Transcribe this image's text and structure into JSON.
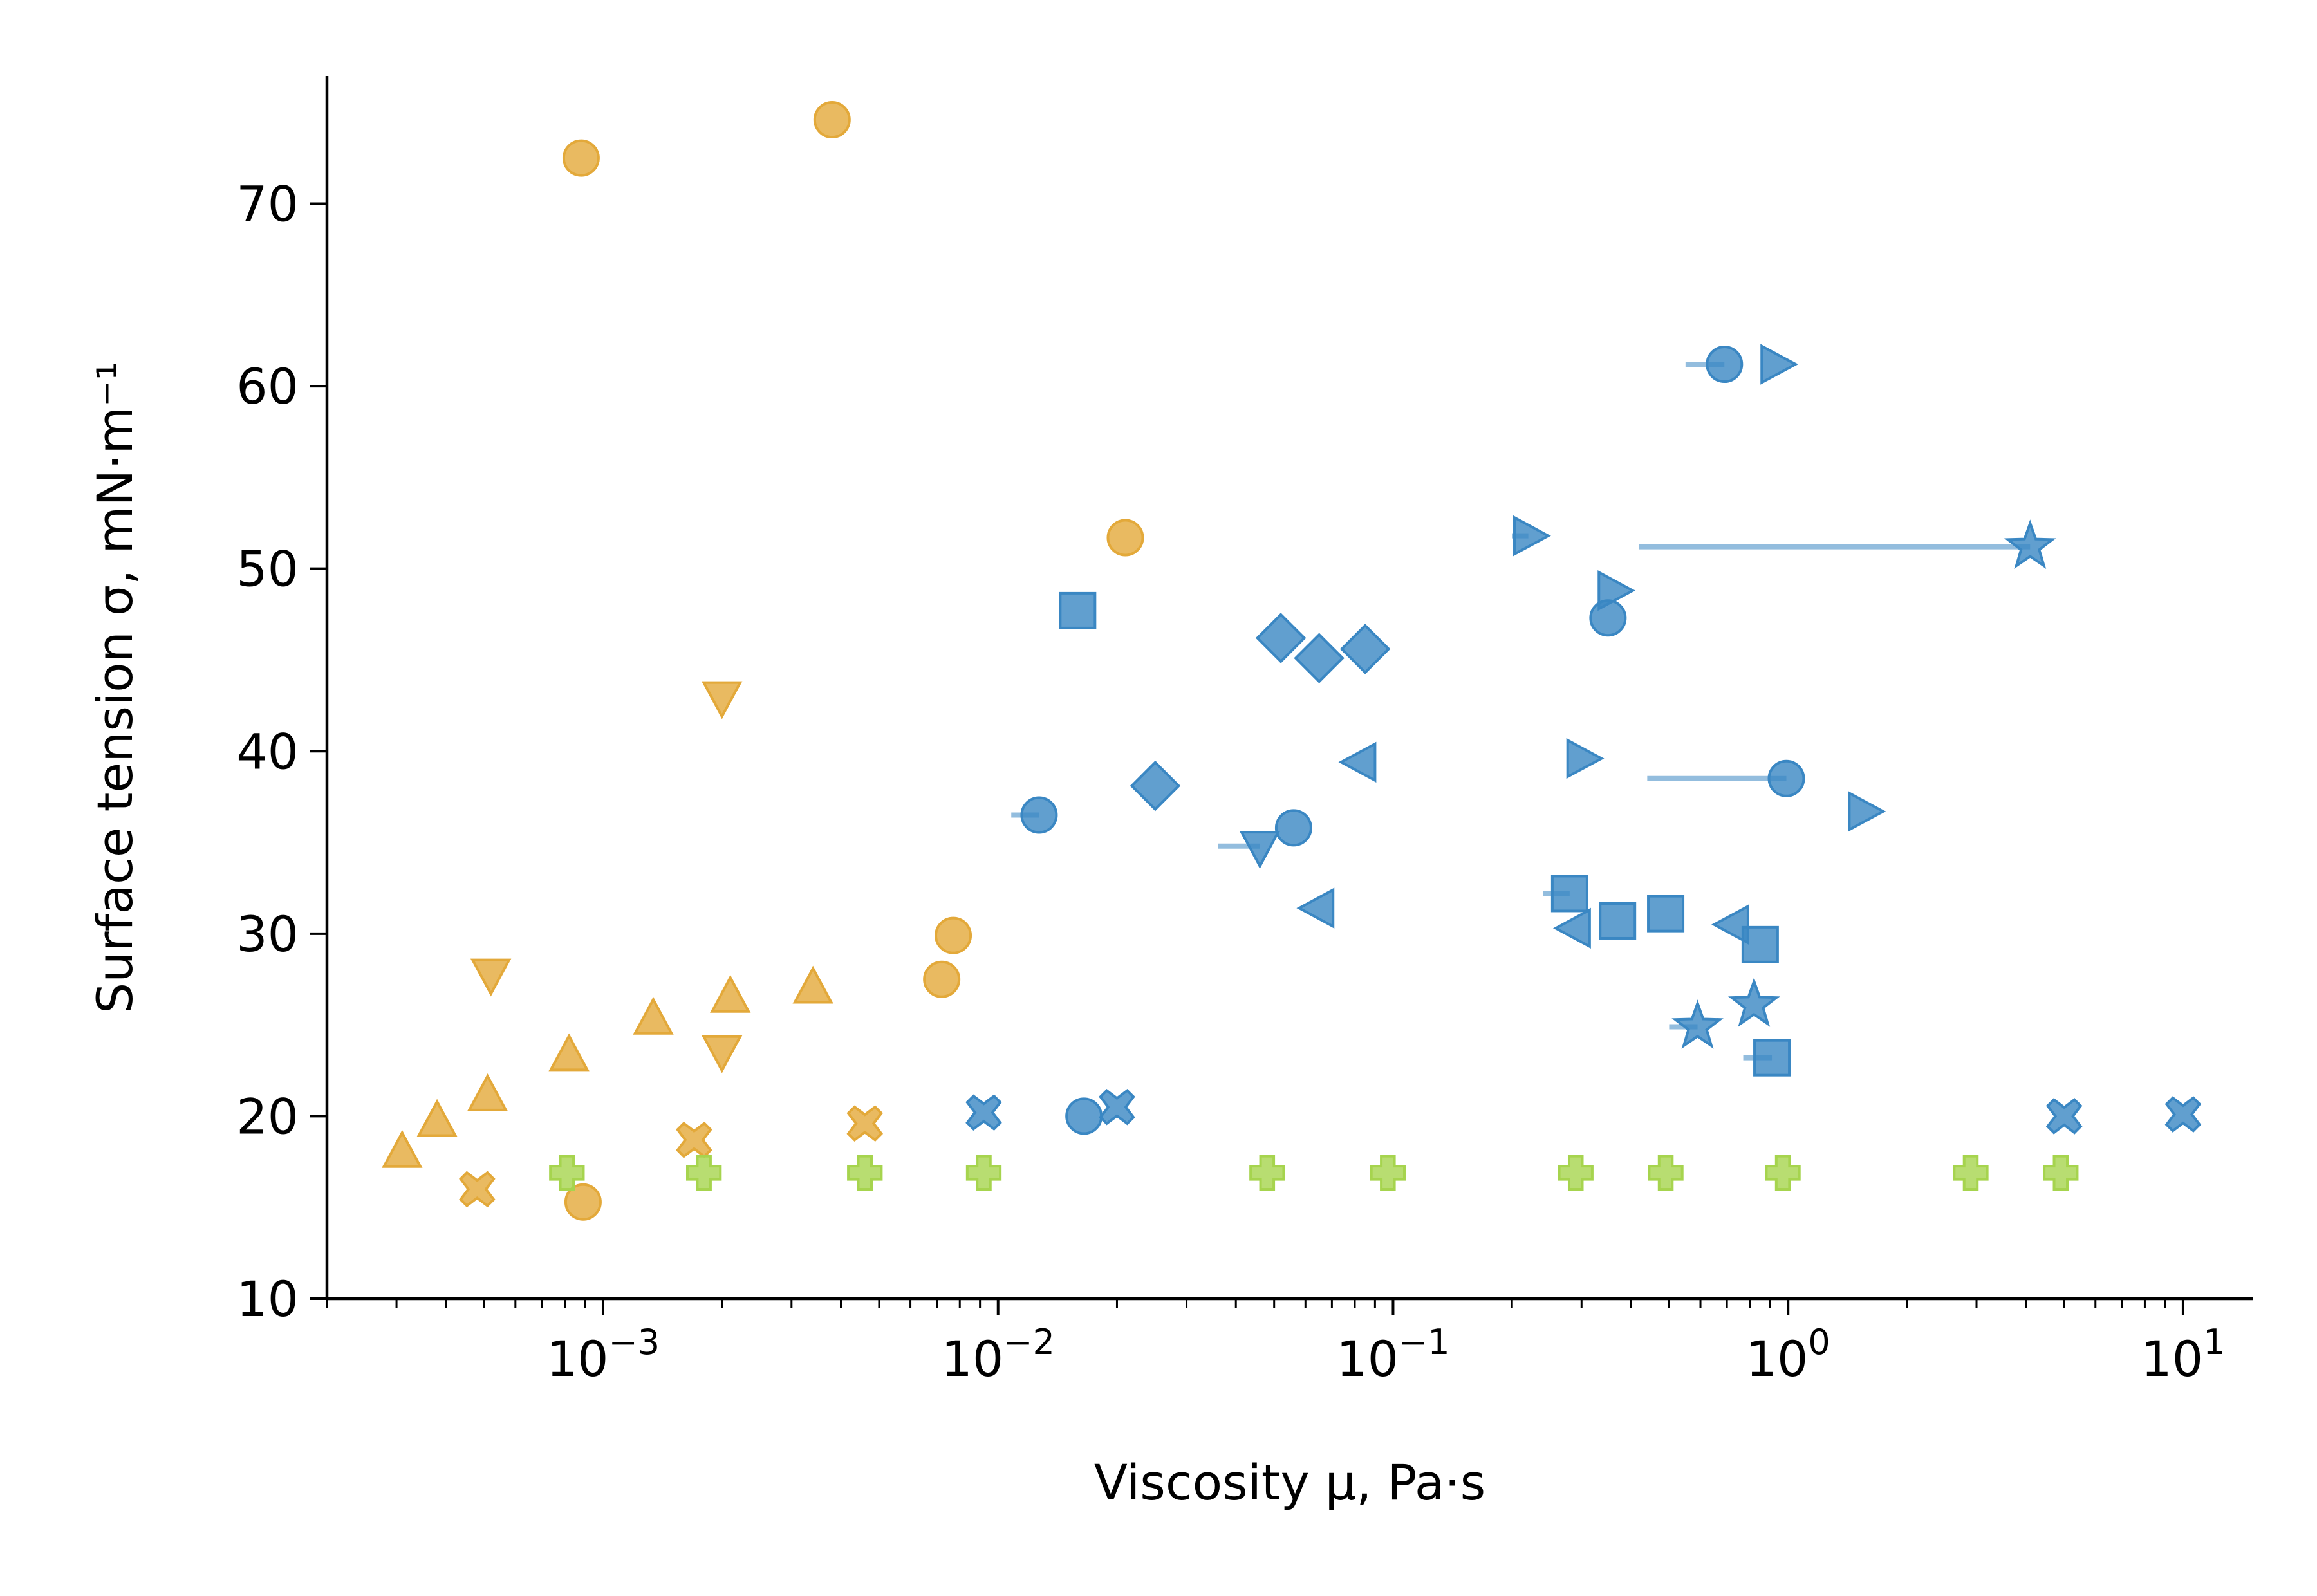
{
  "chart_data": {
    "type": "scatter",
    "title": "",
    "xlabel": "Viscosity μ, Pa·s",
    "ylabel": "Surface tension σ, mN·m⁻¹",
    "x_scale": "log",
    "xlim": [
      0.0002,
      15
    ],
    "ylim": [
      10,
      77
    ],
    "x_ticks": [
      {
        "value": 0.001,
        "base": "10",
        "exp": "−3"
      },
      {
        "value": 0.01,
        "base": "10",
        "exp": "−2"
      },
      {
        "value": 0.1,
        "base": "10",
        "exp": "−1"
      },
      {
        "value": 1,
        "base": "10",
        "exp": "0"
      },
      {
        "value": 10,
        "base": "10",
        "exp": "1"
      }
    ],
    "y_ticks": [
      10,
      20,
      30,
      40,
      50,
      60,
      70
    ],
    "grid": false,
    "colors": {
      "orange": "#e3a93a",
      "blue": "#3a87c3",
      "green": "#a6d44e"
    },
    "series": [
      {
        "color": "orange",
        "marker": "circle",
        "points": [
          {
            "x": 0.00088,
            "y": 72.5
          },
          {
            "x": 0.0038,
            "y": 74.6
          },
          {
            "x": 0.021,
            "y": 51.7
          },
          {
            "x": 0.0077,
            "y": 29.9
          },
          {
            "x": 0.0072,
            "y": 27.5
          },
          {
            "x": 0.00089,
            "y": 15.3
          }
        ]
      },
      {
        "color": "orange",
        "marker": "triangle-up",
        "points": [
          {
            "x": 0.00031,
            "y": 18.0
          },
          {
            "x": 0.00038,
            "y": 19.7
          },
          {
            "x": 0.00051,
            "y": 21.1
          },
          {
            "x": 0.00082,
            "y": 23.3
          },
          {
            "x": 0.00134,
            "y": 25.3
          },
          {
            "x": 0.0021,
            "y": 26.5
          },
          {
            "x": 0.0034,
            "y": 27.0
          }
        ]
      },
      {
        "color": "orange",
        "marker": "triangle-down",
        "points": [
          {
            "x": 0.002,
            "y": 43.0
          },
          {
            "x": 0.00052,
            "y": 27.8
          },
          {
            "x": 0.002,
            "y": 23.6
          }
        ]
      },
      {
        "color": "orange",
        "marker": "x",
        "points": [
          {
            "x": 0.00048,
            "y": 16.0
          },
          {
            "x": 0.0017,
            "y": 18.7
          },
          {
            "x": 0.0046,
            "y": 19.6
          }
        ]
      },
      {
        "color": "blue",
        "marker": "circle",
        "points": [
          {
            "x": 0.69,
            "y": 61.2,
            "xerr": [
              0.55,
              0.69
            ]
          },
          {
            "x": 0.35,
            "y": 47.3
          },
          {
            "x": 0.99,
            "y": 38.5,
            "xerr": [
              0.44,
              0.99
            ]
          },
          {
            "x": 0.0127,
            "y": 36.5,
            "xerr": [
              0.0108,
              0.0127
            ]
          },
          {
            "x": 0.056,
            "y": 35.8
          },
          {
            "x": 0.0165,
            "y": 20.0
          }
        ]
      },
      {
        "color": "blue",
        "marker": "triangle-right",
        "points": [
          {
            "x": 0.93,
            "y": 61.2
          },
          {
            "x": 0.22,
            "y": 51.8,
            "xerr": [
              0.2,
              0.22
            ]
          },
          {
            "x": 0.36,
            "y": 48.8
          },
          {
            "x": 0.3,
            "y": 39.6
          },
          {
            "x": 1.55,
            "y": 36.7
          }
        ]
      },
      {
        "color": "blue",
        "marker": "star",
        "points": [
          {
            "x": 4.1,
            "y": 51.2,
            "xerr": [
              0.42,
              4.1
            ]
          },
          {
            "x": 0.82,
            "y": 26.1
          },
          {
            "x": 0.59,
            "y": 24.9,
            "xerr": [
              0.5,
              0.59
            ]
          }
        ]
      },
      {
        "color": "blue",
        "marker": "square",
        "points": [
          {
            "x": 0.0159,
            "y": 47.7
          },
          {
            "x": 0.28,
            "y": 32.2,
            "xerr": [
              0.24,
              0.28
            ]
          },
          {
            "x": 0.37,
            "y": 30.7
          },
          {
            "x": 0.49,
            "y": 31.1
          },
          {
            "x": 0.85,
            "y": 29.4
          },
          {
            "x": 0.91,
            "y": 23.2,
            "xerr": [
              0.77,
              0.91
            ]
          }
        ]
      },
      {
        "color": "blue",
        "marker": "diamond",
        "points": [
          {
            "x": 0.052,
            "y": 46.2
          },
          {
            "x": 0.065,
            "y": 45.1
          },
          {
            "x": 0.085,
            "y": 45.6
          },
          {
            "x": 0.025,
            "y": 38.1
          }
        ]
      },
      {
        "color": "blue",
        "marker": "triangle-left",
        "points": [
          {
            "x": 0.083,
            "y": 39.4
          },
          {
            "x": 0.065,
            "y": 31.4
          },
          {
            "x": 0.29,
            "y": 30.3
          },
          {
            "x": 0.73,
            "y": 30.5
          }
        ]
      },
      {
        "color": "blue",
        "marker": "triangle-down",
        "points": [
          {
            "x": 0.046,
            "y": 34.8,
            "xerr": [
              0.036,
              0.046
            ]
          }
        ]
      },
      {
        "color": "blue",
        "marker": "x",
        "points": [
          {
            "x": 0.0092,
            "y": 20.2
          },
          {
            "x": 0.02,
            "y": 20.5
          },
          {
            "x": 5.0,
            "y": 20.0
          },
          {
            "x": 10.0,
            "y": 20.1
          }
        ]
      },
      {
        "color": "green",
        "marker": "plus",
        "points": [
          {
            "x": 0.00081,
            "y": 16.9
          },
          {
            "x": 0.0018,
            "y": 16.9
          },
          {
            "x": 0.0046,
            "y": 16.9
          },
          {
            "x": 0.0092,
            "y": 16.9
          },
          {
            "x": 0.048,
            "y": 16.9
          },
          {
            "x": 0.097,
            "y": 16.9
          },
          {
            "x": 0.29,
            "y": 16.9
          },
          {
            "x": 0.49,
            "y": 16.9
          },
          {
            "x": 0.97,
            "y": 16.9
          },
          {
            "x": 2.9,
            "y": 16.9
          },
          {
            "x": 4.9,
            "y": 16.9
          }
        ]
      }
    ]
  }
}
